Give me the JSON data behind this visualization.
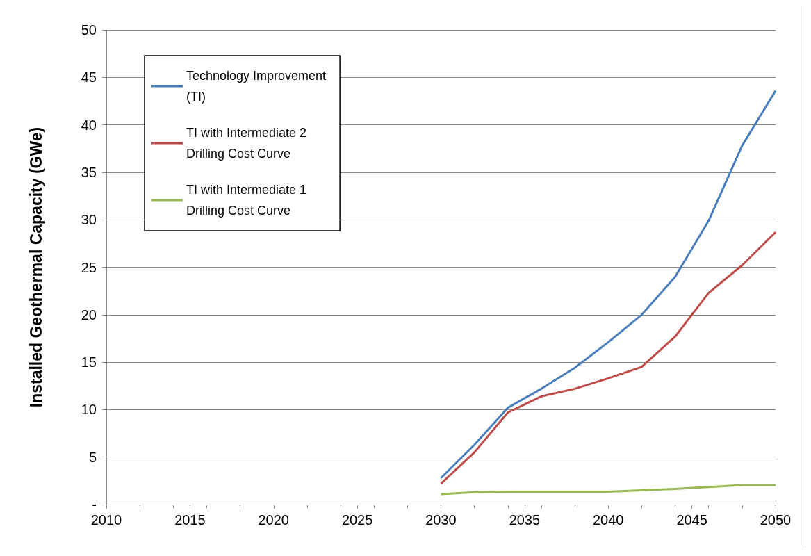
{
  "chart_data": {
    "type": "line",
    "ylabel": "Installed Geothermal Capacity (GWe)",
    "x": [
      2030,
      2032,
      2034,
      2036,
      2038,
      2040,
      2042,
      2044,
      2046,
      2048,
      2050
    ],
    "series": [
      {
        "name": "Technology Improvement\n(TI)",
        "color": "#4a7ebb",
        "values": [
          2.8,
          6.3,
          10.2,
          12.2,
          14.4,
          17.1,
          20.0,
          24.0,
          29.9,
          37.8,
          43.6
        ]
      },
      {
        "name": "TI with Intermediate 2\nDrilling Cost Curve",
        "color": "#be4b48",
        "values": [
          2.2,
          5.5,
          9.7,
          11.4,
          12.2,
          13.3,
          14.5,
          17.7,
          22.3,
          25.2,
          28.7
        ]
      },
      {
        "name": "TI with Intermediate 1\nDrilling Cost Curve",
        "color": "#98b954",
        "values": [
          1.1,
          1.3,
          1.35,
          1.35,
          1.35,
          1.35,
          1.5,
          1.65,
          1.85,
          2.05,
          2.05
        ]
      }
    ],
    "xlim": [
      2010,
      2050
    ],
    "xticks": [
      2010,
      2015,
      2020,
      2025,
      2030,
      2035,
      2040,
      2045,
      2050
    ],
    "ylim": [
      0,
      50
    ],
    "yticks": [
      {
        "value": 0,
        "label": "-"
      },
      5,
      10,
      15,
      20,
      25,
      30,
      35,
      40,
      45,
      50
    ],
    "grid": "y",
    "legend": "top left",
    "marker": "none",
    "line_style": "solid"
  }
}
